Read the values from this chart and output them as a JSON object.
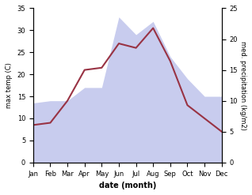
{
  "months": [
    "Jan",
    "Feb",
    "Mar",
    "Apr",
    "May",
    "Jun",
    "Jul",
    "Aug",
    "Sep",
    "Oct",
    "Nov",
    "Dec"
  ],
  "max_temp": [
    8.5,
    9.0,
    14.0,
    21.0,
    21.5,
    27.0,
    26.0,
    30.5,
    23.0,
    13.0,
    10.0,
    7.0
  ],
  "precipitation": [
    13.5,
    14.0,
    14.0,
    17.0,
    17.0,
    33.0,
    29.0,
    32.0,
    24.0,
    19.0,
    15.0,
    15.0
  ],
  "temp_color": "#993344",
  "precip_fill_color": "#c8ccee",
  "left_ylim": [
    0,
    35
  ],
  "right_ylim": [
    0,
    25
  ],
  "left_yticks": [
    0,
    5,
    10,
    15,
    20,
    25,
    30,
    35
  ],
  "right_yticks": [
    0,
    5,
    10,
    15,
    20,
    25
  ],
  "xlabel": "date (month)",
  "ylabel_left": "max temp (C)",
  "ylabel_right": "med. precipitation (kg/m2)",
  "background_color": "#ffffff"
}
